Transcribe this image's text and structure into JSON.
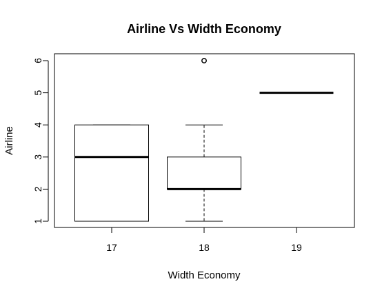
{
  "chart_data": {
    "type": "boxplot",
    "title": "Airline Vs Width Economy",
    "xlabel": "Width Economy",
    "ylabel": "Airline",
    "categories": [
      "17",
      "18",
      "19"
    ],
    "boxes": [
      {
        "category": "17",
        "whisker_low": 1,
        "q1": 1,
        "median": 3,
        "q3": 4,
        "whisker_high": 4,
        "outliers": []
      },
      {
        "category": "18",
        "whisker_low": 1,
        "q1": 2,
        "median": 2,
        "q3": 3,
        "whisker_high": 4,
        "outliers": [
          6
        ]
      },
      {
        "category": "19",
        "whisker_low": 5,
        "q1": 5,
        "median": 5,
        "q3": 5,
        "whisker_high": 5,
        "outliers": []
      }
    ],
    "yticks": [
      1,
      2,
      3,
      4,
      5,
      6
    ],
    "yticklabels": [
      "1",
      "2",
      "3",
      "4",
      "5",
      "6"
    ],
    "ylim": [
      0.8,
      6.2
    ],
    "grid": false,
    "legend": "none",
    "colors": {
      "stroke": "#000000",
      "box_fill": "#ffffff",
      "background": "#ffffff"
    }
  }
}
